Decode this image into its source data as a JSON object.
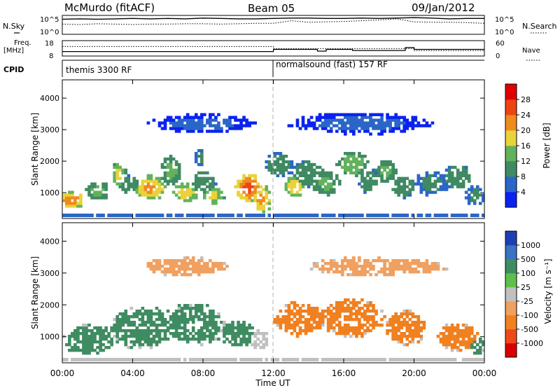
{
  "header": {
    "station": "McMurdo (fitACF)",
    "beam": "Beam 05",
    "date": "09/Jan/2012"
  },
  "strip_labels": {
    "nsky": "N.Sky",
    "nsearch": "N.Search",
    "freq": "Freq.",
    "freq_unit": "[MHz]",
    "nave": "Nave",
    "cpid": "CPID"
  },
  "cpid": {
    "left": "themis 3300 RF",
    "right": "normalsound (fast) 157 RF",
    "switch_time": "12:00"
  },
  "chart_data": [
    {
      "type": "line",
      "name": "noise-strip",
      "left_ticks": [
        "10^5",
        "10^0"
      ],
      "right_ticks": [
        "10^5",
        "10^0"
      ],
      "y_log_range": [
        0,
        5
      ],
      "series": [
        {
          "name": "N.Sky",
          "style": "solid",
          "x": [
            0,
            1,
            2,
            3,
            4,
            5,
            6,
            7,
            8,
            9,
            10,
            11,
            12,
            13,
            14,
            15,
            16,
            17,
            18,
            19,
            20,
            21,
            22,
            23,
            24
          ],
          "y": [
            4.0,
            4.1,
            4.0,
            4.1,
            4.2,
            4.1,
            4.2,
            4.1,
            4.3,
            4.2,
            4.1,
            4.1,
            4.2,
            4.3,
            4.3,
            4.2,
            4.2,
            4.3,
            4.2,
            4.3,
            4.4,
            4.3,
            4.1,
            4.2,
            4.2
          ]
        },
        {
          "name": "N.Search",
          "style": "dotted",
          "x": [
            0,
            1,
            2,
            3,
            4,
            5,
            6,
            7,
            8,
            9,
            10,
            11,
            12,
            13,
            14,
            15,
            16,
            17,
            18,
            19,
            20,
            21,
            22,
            23,
            24
          ],
          "y": [
            2.7,
            2.6,
            2.8,
            2.7,
            2.6,
            2.7,
            2.7,
            2.8,
            2.8,
            2.7,
            2.8,
            2.9,
            2.9,
            3.6,
            3.2,
            3.3,
            3.4,
            3.6,
            3.8,
            4.1,
            3.3,
            3.2,
            3.2,
            3.1,
            2.9
          ]
        }
      ]
    },
    {
      "type": "line",
      "name": "freq-strip",
      "left_ticks": [
        "18",
        "8"
      ],
      "right_ticks": [
        "60",
        "0"
      ],
      "ylim": [
        8,
        18
      ],
      "series": [
        {
          "name": "Freq.",
          "style": "solid",
          "x": [
            0,
            12,
            12.01,
            14.5,
            14.51,
            15,
            15.01,
            16.5,
            16.51,
            19.5,
            19.51,
            20,
            20.01,
            24
          ],
          "y": [
            10.9,
            10.9,
            12.3,
            12.3,
            11.2,
            11.2,
            12.3,
            12.3,
            11.6,
            11.6,
            13.5,
            13.5,
            12.3,
            12.3
          ]
        },
        {
          "name": "Nave",
          "style": "dotted",
          "x": [
            0,
            12,
            12.01,
            20,
            20.01,
            24
          ],
          "y": [
            14.2,
            14.2,
            12.8,
            12.8,
            11.5,
            11.5
          ]
        }
      ]
    },
    {
      "type": "heatmap",
      "name": "power",
      "ylabel": "Slant Range [km]",
      "yticks": [
        "1000",
        "2000",
        "3000",
        "4000"
      ],
      "ylim": [
        180,
        4580
      ],
      "colorbar_label": "Power [dB]",
      "colorbar_ticks": [
        "4",
        "8",
        "12",
        "16",
        "20",
        "24",
        "28"
      ],
      "colorbar_range": [
        0,
        32
      ],
      "colors": [
        "#0a22f0",
        "#2a66c8",
        "#3f8a62",
        "#62b25c",
        "#e9d23a",
        "#ef8a1e",
        "#ee4414",
        "#e00000"
      ],
      "blobs": [
        {
          "t": 0.5,
          "r": 780,
          "tw": 0.8,
          "rw": 260,
          "p": 24
        },
        {
          "t": 2.0,
          "r": 1050,
          "tw": 0.7,
          "rw": 300,
          "p": 14
        },
        {
          "t": 3.2,
          "r": 1600,
          "tw": 0.4,
          "rw": 380,
          "p": 18
        },
        {
          "t": 3.8,
          "r": 1250,
          "tw": 0.6,
          "rw": 300,
          "p": 12
        },
        {
          "t": 5.0,
          "r": 1150,
          "tw": 0.9,
          "rw": 380,
          "p": 22
        },
        {
          "t": 6.2,
          "r": 1700,
          "tw": 0.6,
          "rw": 500,
          "p": 14
        },
        {
          "t": 7.0,
          "r": 1000,
          "tw": 0.7,
          "rw": 300,
          "p": 20
        },
        {
          "t": 7.8,
          "r": 2100,
          "tw": 0.3,
          "rw": 300,
          "p": 10
        },
        {
          "t": 8.0,
          "r": 1300,
          "tw": 0.7,
          "rw": 400,
          "p": 12
        },
        {
          "t": 8.6,
          "r": 900,
          "tw": 0.6,
          "rw": 300,
          "p": 18
        },
        {
          "t": 10.6,
          "r": 1150,
          "tw": 0.8,
          "rw": 450,
          "p": 26
        },
        {
          "t": 11.3,
          "r": 800,
          "tw": 0.6,
          "rw": 450,
          "p": 22
        },
        {
          "t": 12.3,
          "r": 1900,
          "tw": 0.8,
          "rw": 380,
          "p": 12
        },
        {
          "t": 13.2,
          "r": 1200,
          "tw": 0.6,
          "rw": 330,
          "p": 20
        },
        {
          "t": 14.0,
          "r": 1600,
          "tw": 1.0,
          "rw": 450,
          "p": 12
        },
        {
          "t": 15.0,
          "r": 1300,
          "tw": 0.8,
          "rw": 400,
          "p": 14
        },
        {
          "t": 16.5,
          "r": 1900,
          "tw": 0.9,
          "rw": 420,
          "p": 16
        },
        {
          "t": 17.4,
          "r": 1400,
          "tw": 0.6,
          "rw": 400,
          "p": 12
        },
        {
          "t": 18.4,
          "r": 1700,
          "tw": 0.6,
          "rw": 380,
          "p": 14
        },
        {
          "t": 19.4,
          "r": 1200,
          "tw": 0.7,
          "rw": 350,
          "p": 12
        },
        {
          "t": 21.0,
          "r": 1300,
          "tw": 0.9,
          "rw": 400,
          "p": 10
        },
        {
          "t": 22.5,
          "r": 1500,
          "tw": 0.8,
          "rw": 400,
          "p": 12
        },
        {
          "t": 23.5,
          "r": 900,
          "tw": 0.6,
          "rw": 350,
          "p": 10
        },
        {
          "t": 8.0,
          "r": 3200,
          "tw": 3.0,
          "rw": 300,
          "p": 5
        },
        {
          "t": 17.0,
          "r": 3200,
          "tw": 4.0,
          "rw": 350,
          "p": 5
        }
      ]
    },
    {
      "type": "heatmap",
      "name": "velocity",
      "xlabel": "Time UT",
      "ylabel": "Slant Range [km]",
      "xticks": [
        "00:00",
        "04:00",
        "08:00",
        "12:00",
        "16:00",
        "20:00",
        "00:00"
      ],
      "xlim": [
        0,
        24
      ],
      "yticks": [
        "1000",
        "2000",
        "3000",
        "4000"
      ],
      "ylim": [
        180,
        4580
      ],
      "colorbar_label": "Velocity [m s⁻¹]",
      "colorbar_ticks": [
        "1000",
        "500",
        "100",
        "25",
        "-25",
        "-100",
        "-500",
        "-1000"
      ],
      "colors": [
        "#1e3fb4",
        "#3a72c4",
        "#3f8c62",
        "#5ec04a",
        "#c0c0c0",
        "#f0a060",
        "#f08020",
        "#ee4a18",
        "#d80000"
      ],
      "blobs": [
        {
          "t": 1.5,
          "r": 900,
          "tw": 1.5,
          "rw": 500,
          "v": 200
        },
        {
          "t": 4.5,
          "r": 1300,
          "tw": 1.8,
          "rw": 700,
          "v": 180
        },
        {
          "t": 7.5,
          "r": 1400,
          "tw": 1.8,
          "rw": 650,
          "v": 220
        },
        {
          "t": 10.0,
          "r": 1100,
          "tw": 1.0,
          "rw": 450,
          "v": 150
        },
        {
          "t": 11.2,
          "r": 900,
          "tw": 0.6,
          "rw": 350,
          "v": 10
        },
        {
          "t": 13.5,
          "r": 1550,
          "tw": 1.5,
          "rw": 550,
          "v": -250
        },
        {
          "t": 16.5,
          "r": 1600,
          "tw": 1.8,
          "rw": 600,
          "v": -300
        },
        {
          "t": 19.5,
          "r": 1300,
          "tw": 1.2,
          "rw": 550,
          "v": -220
        },
        {
          "t": 22.5,
          "r": 1000,
          "tw": 1.2,
          "rw": 450,
          "v": -150
        },
        {
          "t": 23.6,
          "r": 700,
          "tw": 0.4,
          "rw": 300,
          "v": 120
        },
        {
          "t": 7.0,
          "r": 3200,
          "tw": 2.5,
          "rw": 300,
          "v": -50
        },
        {
          "t": 18.0,
          "r": 3200,
          "tw": 4.0,
          "rw": 300,
          "v": -80
        }
      ]
    }
  ]
}
